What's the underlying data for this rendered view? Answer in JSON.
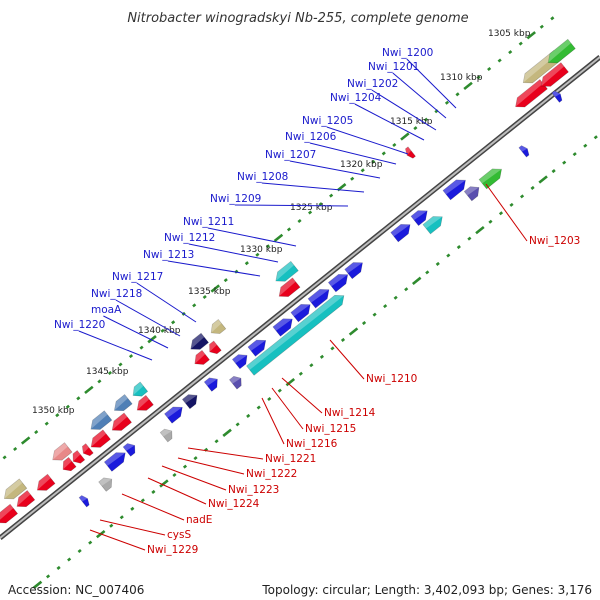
{
  "title": "Nitrobacter winogradskyi Nb-255, complete genome",
  "footer": {
    "accession": "Accession: NC_007406",
    "summary": "Topology: circular; Length: 3,402,093 bp; Genes: 3,176"
  },
  "colors": {
    "backbone": "#888888",
    "tick": "#2e8b2e",
    "label_forward": "#1a1acc",
    "label_reverse": "#cc0000",
    "red": "#e8001c",
    "blue": "#1a1adc",
    "cyan": "#17c0c0",
    "green": "#33bb33",
    "navy": "#151565",
    "slate": "#5a4fae",
    "khaki": "#c4b77e",
    "steel": "#4f7fb6",
    "pink": "#e88888",
    "grey": "#aaaaaa"
  },
  "kbp_labels": [
    "1305 kbp",
    "1310 kbp",
    "1315 kbp",
    "1320 kbp",
    "1325 kbp",
    "1330 kbp",
    "1335 kbp",
    "1340 kbp",
    "1345 kbp",
    "1350 kbp"
  ],
  "gene_labels_forward": [
    "Nwi_1200",
    "Nwi_1201",
    "Nwi_1202",
    "Nwi_1204",
    "Nwi_1205",
    "Nwi_1206",
    "Nwi_1207",
    "Nwi_1208",
    "Nwi_1209",
    "Nwi_1211",
    "Nwi_1212",
    "Nwi_1213",
    "Nwi_1217",
    "Nwi_1218",
    "moaA",
    "Nwi_1220"
  ],
  "gene_labels_reverse": [
    "Nwi_1203",
    "Nwi_1210",
    "Nwi_1214",
    "Nwi_1215",
    "Nwi_1216",
    "Nwi_1221",
    "Nwi_1222",
    "Nwi_1223",
    "Nwi_1224",
    "nadE",
    "cysS",
    "Nwi_1229"
  ]
}
